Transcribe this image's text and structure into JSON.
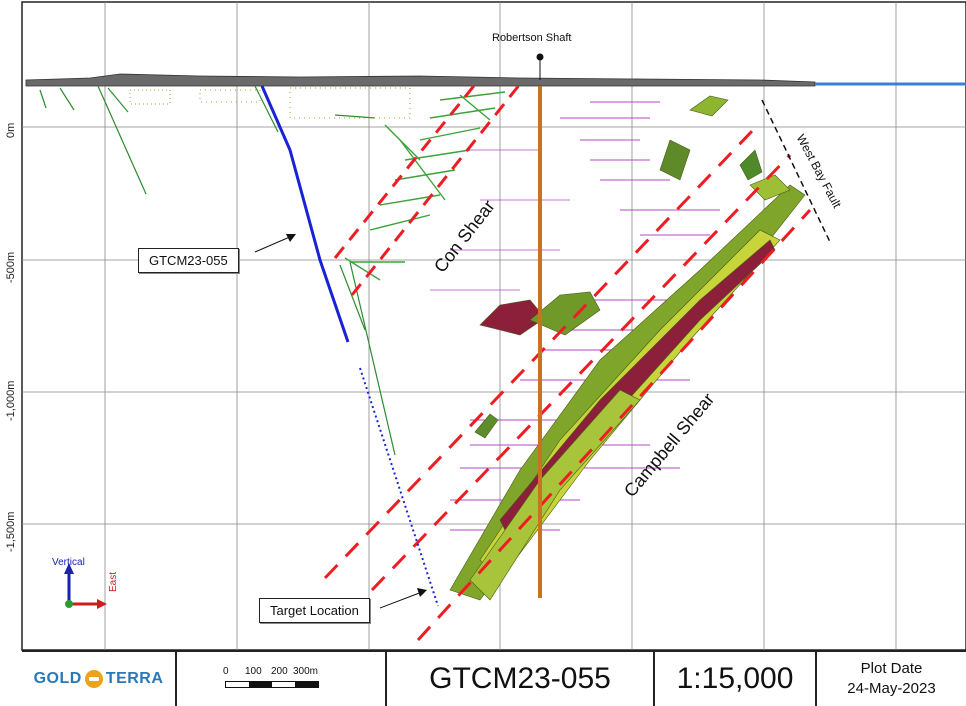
{
  "section": {
    "shaft_label": "Robertson Shaft",
    "depth_ticks": [
      "0m",
      "-500m",
      "-1,000m",
      "-1,500m"
    ],
    "callouts": {
      "hole": "GTCM23-055",
      "target": "Target Location"
    },
    "structures": {
      "con_shear": "Con Shear",
      "campbell_shear": "Campbell Shear",
      "west_bay_fault": "West Bay Fault"
    },
    "axes_indicator": {
      "vertical": "Vertical",
      "east": "East"
    }
  },
  "titleblock": {
    "logo_left": "GOLD",
    "logo_right": "TERRA",
    "scale_bar_labels": [
      "0",
      "100",
      "200",
      "300m"
    ],
    "hole_id": "GTCM23-055",
    "scale": "1:15,000",
    "plot_date_label": "Plot Date",
    "plot_date": "24-May-2023"
  },
  "colors": {
    "drillhole": "#1a22d6",
    "shaft": "#c9721f",
    "shear_zone": "#ee1d23",
    "fault": "#111111",
    "surface": "#555555",
    "lake": "#3a7fd8"
  }
}
